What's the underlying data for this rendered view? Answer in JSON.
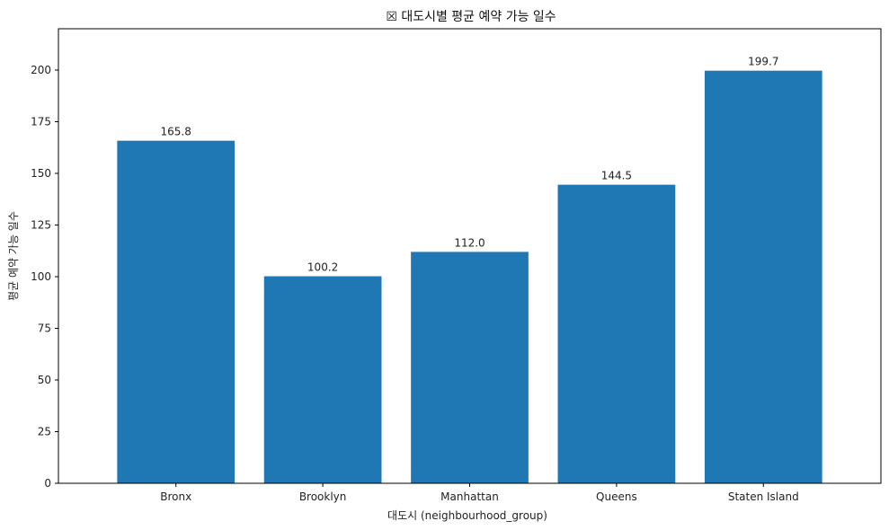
{
  "chart_data": {
    "type": "bar",
    "title": "☒ 대도시별 평균 예약 가능 일수",
    "xlabel": "대도시 (neighbourhood_group)",
    "ylabel": "평균 예약 가능 일수",
    "categories": [
      "Bronx",
      "Brooklyn",
      "Manhattan",
      "Queens",
      "Staten Island"
    ],
    "values": [
      165.8,
      100.2,
      112.0,
      144.5,
      199.7
    ],
    "value_labels": [
      "165.8",
      "100.2",
      "112.0",
      "144.5",
      "199.7"
    ],
    "ylim": [
      0,
      220
    ],
    "yticks": [
      0,
      25,
      50,
      75,
      100,
      125,
      150,
      175,
      200
    ],
    "grid": false,
    "bar_color": "#1f77b4"
  }
}
